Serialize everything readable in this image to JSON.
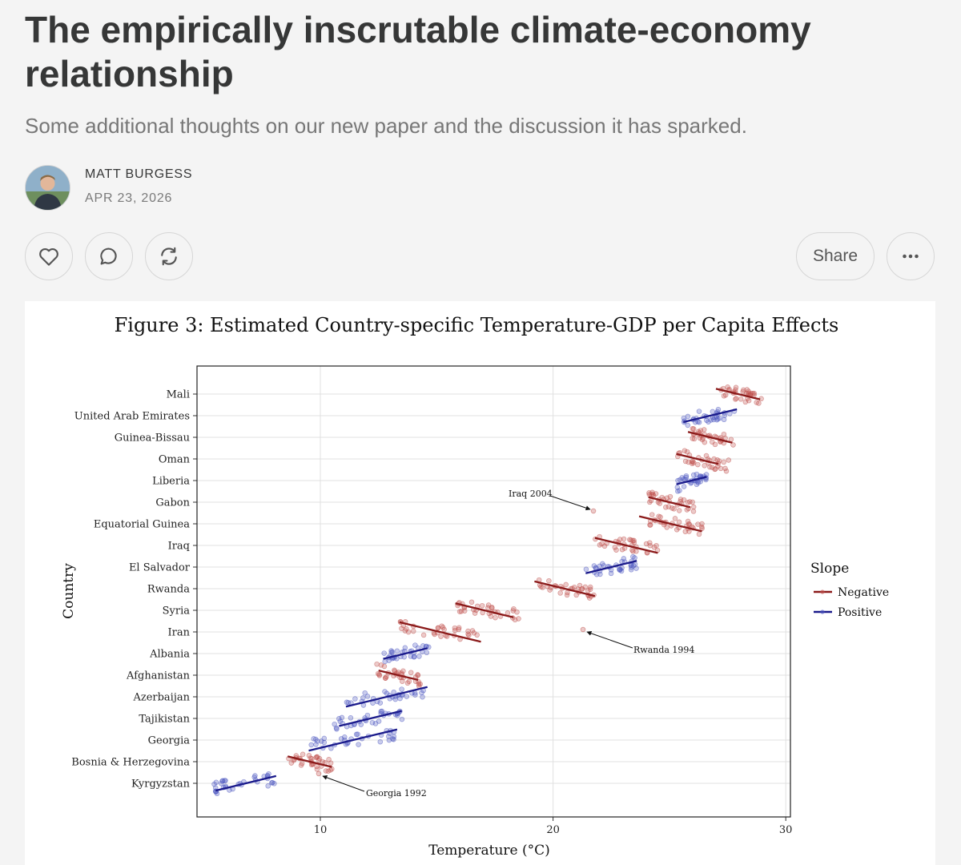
{
  "post": {
    "title": "The empirically inscrutable climate-economy relationship",
    "subtitle": "Some additional thoughts on our new paper and the discussion it has sparked.",
    "author": "MATT BURGESS",
    "date": "APR 23, 2026"
  },
  "actions": {
    "like_icon": "heart-icon",
    "comment_icon": "comment-icon",
    "restack_icon": "restack-icon",
    "share_label": "Share",
    "more_icon": "more-icon"
  },
  "colors": {
    "negative": "#8b1a1a",
    "positive": "#1a1a8b",
    "negative_points": "#c0504d",
    "positive_points": "#4b55c0"
  },
  "chart_data": {
    "type": "scatter",
    "title": "Figure 3: Estimated Country-specific Temperature-GDP per Capita Effects",
    "xlabel": "Temperature (°C)",
    "ylabel": "Country",
    "xlim": [
      4.7,
      30.2
    ],
    "xticks": [
      "10",
      "20",
      "30"
    ],
    "grid": true,
    "legend": {
      "title": "Slope",
      "position": "right",
      "entries": [
        "Negative",
        "Positive"
      ]
    },
    "countries": [
      {
        "name": "Mali",
        "slope": "Negative",
        "tmin": 27.0,
        "tmax": 29.0,
        "fit": [
          27.0,
          28.9
        ]
      },
      {
        "name": "United Arab Emirates",
        "slope": "Positive",
        "tmin": 25.6,
        "tmax": 27.8,
        "fit": [
          25.6,
          27.9
        ]
      },
      {
        "name": "Guinea-Bissau",
        "slope": "Negative",
        "tmin": 25.8,
        "tmax": 27.8,
        "fit": [
          25.8,
          27.7
        ]
      },
      {
        "name": "Oman",
        "slope": "Negative",
        "tmin": 25.3,
        "tmax": 27.6,
        "fit": [
          25.3,
          27.1
        ]
      },
      {
        "name": "Liberia",
        "slope": "Positive",
        "tmin": 25.3,
        "tmax": 26.6,
        "fit": [
          25.3,
          26.6
        ]
      },
      {
        "name": "Gabon",
        "slope": "Negative",
        "tmin": 24.1,
        "tmax": 26.2,
        "fit": [
          24.1,
          25.9
        ]
      },
      {
        "name": "Equatorial Guinea",
        "slope": "Negative",
        "tmin": 23.8,
        "tmax": 26.5,
        "fit": [
          23.7,
          26.4
        ]
      },
      {
        "name": "Iraq",
        "slope": "Negative",
        "tmin": 21.8,
        "tmax": 24.6,
        "fit": [
          21.8,
          24.5
        ]
      },
      {
        "name": "El Salvador",
        "slope": "Positive",
        "tmin": 21.4,
        "tmax": 23.6,
        "fit": [
          21.4,
          23.6
        ]
      },
      {
        "name": "Rwanda",
        "slope": "Negative",
        "tmin": 19.2,
        "tmax": 21.8,
        "fit": [
          19.2,
          21.8
        ]
      },
      {
        "name": "Syria",
        "slope": "Negative",
        "tmin": 15.9,
        "tmax": 18.6,
        "fit": [
          15.8,
          18.3
        ]
      },
      {
        "name": "Iran",
        "slope": "Negative",
        "tmin": 13.4,
        "tmax": 16.9,
        "fit": [
          13.4,
          16.9
        ]
      },
      {
        "name": "Albania",
        "slope": "Positive",
        "tmin": 12.7,
        "tmax": 14.7,
        "fit": [
          12.7,
          14.6
        ]
      },
      {
        "name": "Afghanistan",
        "slope": "Negative",
        "tmin": 12.4,
        "tmax": 14.3,
        "fit": [
          12.5,
          14.2
        ]
      },
      {
        "name": "Azerbaijan",
        "slope": "Positive",
        "tmin": 11.1,
        "tmax": 14.7,
        "fit": [
          11.1,
          14.6
        ]
      },
      {
        "name": "Tajikistan",
        "slope": "Positive",
        "tmin": 10.6,
        "tmax": 13.6,
        "fit": [
          10.8,
          13.5
        ]
      },
      {
        "name": "Georgia",
        "slope": "Positive",
        "tmin": 9.5,
        "tmax": 13.3,
        "fit": [
          9.5,
          13.3
        ]
      },
      {
        "name": "Bosnia & Herzegovina",
        "slope": "Negative",
        "tmin": 8.6,
        "tmax": 10.6,
        "fit": [
          8.6,
          10.5
        ]
      },
      {
        "name": "Kyrgyzstan",
        "slope": "Positive",
        "tmin": 5.4,
        "tmax": 8.2,
        "fit": [
          5.5,
          8.1
        ]
      }
    ],
    "annotations": [
      {
        "text": "Iraq 2004",
        "country": "Iraq",
        "x": 21.7
      },
      {
        "text": "Rwanda 1994",
        "country": "Rwanda",
        "x": 21.1
      },
      {
        "text": "Georgia 1992",
        "country": "Georgia",
        "x": 9.6
      }
    ]
  }
}
